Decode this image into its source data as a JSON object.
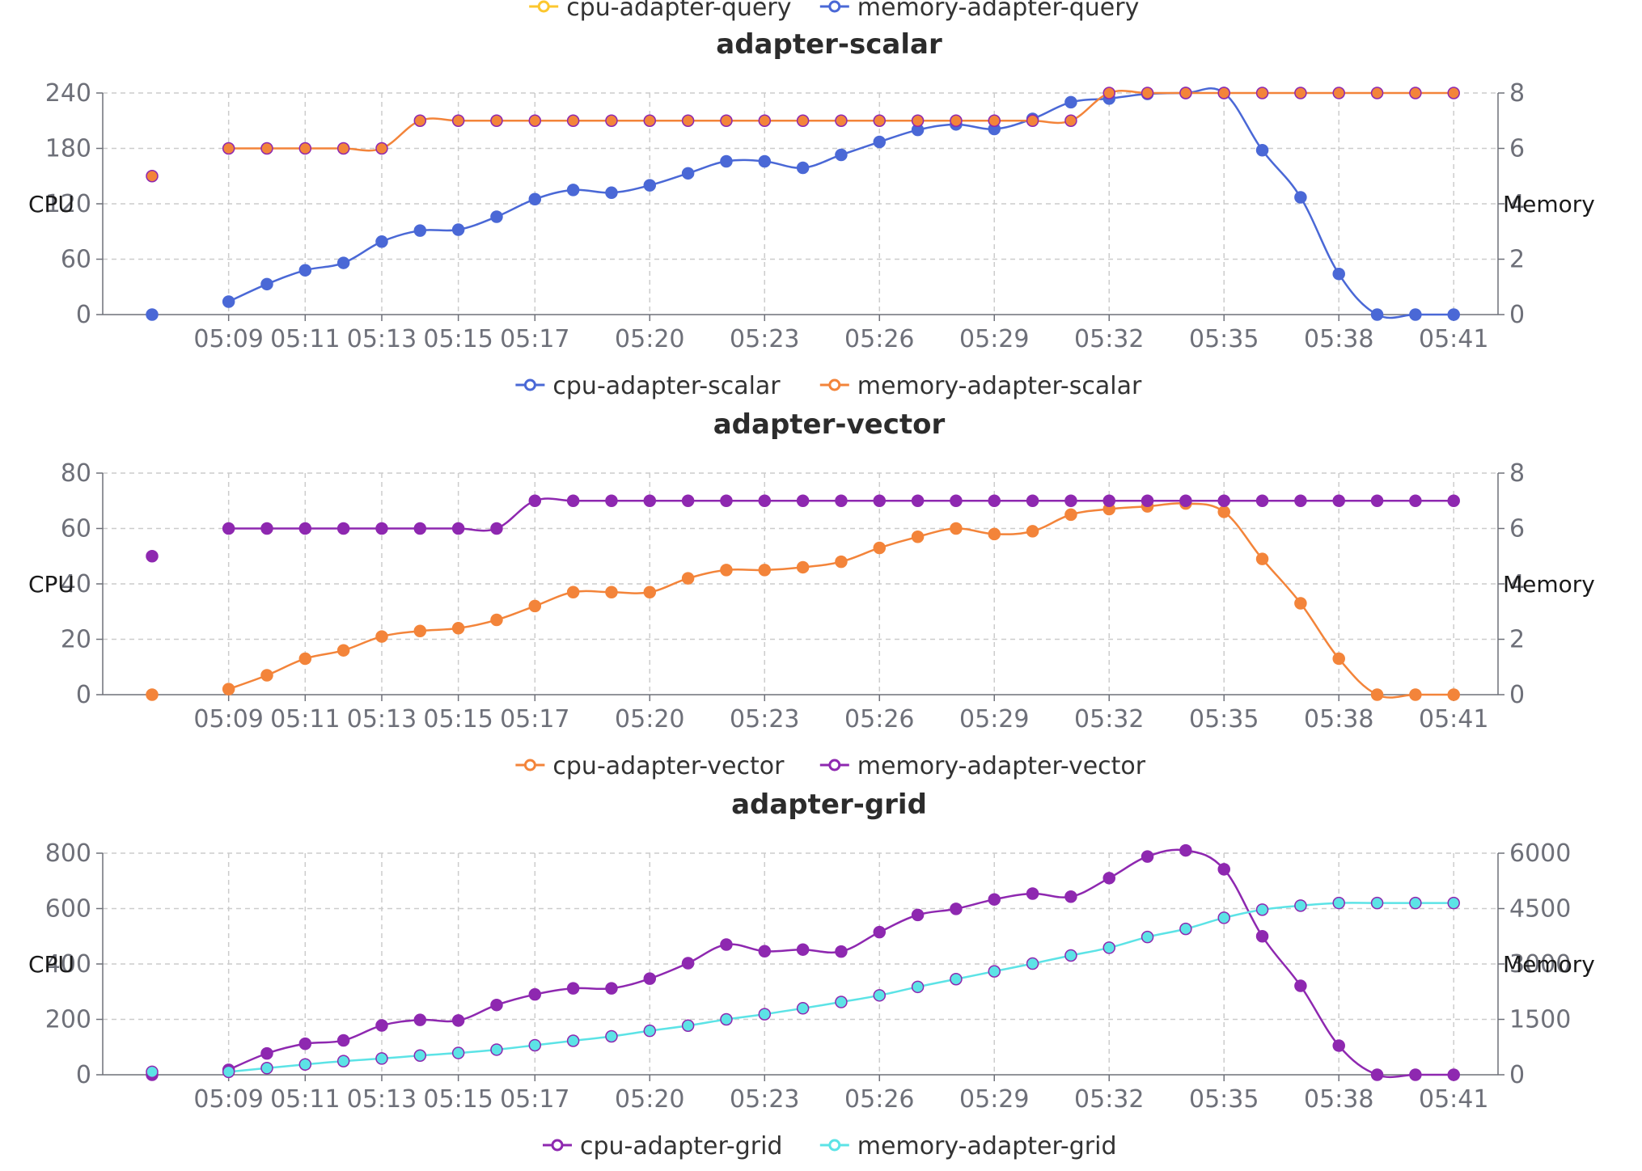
{
  "chart_data": [
    {
      "type": "line",
      "title": "",
      "ylabel": "",
      "y2label": "",
      "legend": [
        {
          "name": "cpu-adapter-query",
          "color": "#fcc72e"
        },
        {
          "name": "memory-adapter-query",
          "color": "#4a68d6"
        }
      ],
      "legend_only": true
    },
    {
      "type": "line",
      "title": "adapter-scalar",
      "ylabel": "CPU",
      "y2label": "Memory",
      "ylim": [
        0,
        240
      ],
      "yticks": [
        0,
        60,
        120,
        180,
        240
      ],
      "y2lim": [
        0,
        8
      ],
      "y2ticks": [
        0,
        2,
        4,
        6,
        8
      ],
      "xticks": [
        "05:09",
        "05:11",
        "05:13",
        "05:15",
        "05:17",
        "05:20",
        "05:23",
        "05:26",
        "05:29",
        "05:32",
        "05:35",
        "05:38",
        "05:41"
      ],
      "grid": true,
      "legend_position": "bottom",
      "series": [
        {
          "name": "cpu-adapter-scalar",
          "axis": "left",
          "color": "#4a68d6",
          "values": [
            0,
            null,
            14,
            33,
            48,
            56,
            79,
            91,
            92,
            106,
            125,
            135,
            132,
            140,
            153,
            166,
            166,
            159,
            173,
            187,
            200,
            206,
            201,
            212,
            230,
            234,
            239,
            240,
            240,
            178,
            127,
            44,
            0,
            0,
            0
          ]
        },
        {
          "name": "memory-adapter-scalar",
          "axis": "right",
          "color": "#f3843a",
          "values": [
            5,
            null,
            6,
            6,
            6,
            6,
            6,
            7,
            7,
            7,
            7,
            7,
            7,
            7,
            7,
            7,
            7,
            7,
            7,
            7,
            7,
            7,
            7,
            7,
            7,
            8,
            8,
            8,
            8,
            8,
            8,
            8,
            8,
            8,
            8
          ]
        }
      ]
    },
    {
      "type": "line",
      "title": "adapter-vector",
      "ylabel": "CPU",
      "y2label": "Memory",
      "ylim": [
        0,
        80
      ],
      "yticks": [
        0,
        20,
        40,
        60,
        80
      ],
      "y2lim": [
        0,
        8
      ],
      "y2ticks": [
        0,
        2,
        4,
        6,
        8
      ],
      "xticks": [
        "05:09",
        "05:11",
        "05:13",
        "05:15",
        "05:17",
        "05:20",
        "05:23",
        "05:26",
        "05:29",
        "05:32",
        "05:35",
        "05:38",
        "05:41"
      ],
      "grid": true,
      "legend_position": "bottom",
      "series": [
        {
          "name": "cpu-adapter-vector",
          "axis": "left",
          "color": "#f3843a",
          "values": [
            0,
            null,
            2,
            7,
            13,
            16,
            21,
            23,
            24,
            27,
            32,
            37,
            37,
            37,
            42,
            45,
            45,
            46,
            48,
            53,
            57,
            60,
            58,
            59,
            65,
            67,
            68,
            69,
            66,
            49,
            33,
            13,
            0,
            0,
            0
          ]
        },
        {
          "name": "memory-adapter-vector",
          "axis": "right",
          "color": "#8e28b0",
          "values": [
            5,
            null,
            6,
            6,
            6,
            6,
            6,
            6,
            6,
            6,
            7,
            7,
            7,
            7,
            7,
            7,
            7,
            7,
            7,
            7,
            7,
            7,
            7,
            7,
            7,
            7,
            7,
            7,
            7,
            7,
            7,
            7,
            7,
            7,
            7
          ]
        }
      ]
    },
    {
      "type": "line",
      "title": "adapter-grid",
      "ylabel": "CPU",
      "y2label": "Memory",
      "ylim": [
        0,
        800
      ],
      "yticks": [
        0,
        200,
        400,
        600,
        800
      ],
      "y2lim": [
        0,
        6000
      ],
      "y2ticks": [
        0,
        1500,
        3000,
        4500,
        6000
      ],
      "xticks": [
        "05:09",
        "05:11",
        "05:13",
        "05:15",
        "05:17",
        "05:20",
        "05:23",
        "05:26",
        "05:29",
        "05:32",
        "05:35",
        "05:38",
        "05:41"
      ],
      "grid": true,
      "legend_position": "bottom",
      "series": [
        {
          "name": "cpu-adapter-grid",
          "axis": "left",
          "color": "#8e28b0",
          "values": [
            0,
            null,
            18,
            77,
            112,
            124,
            178,
            198,
            196,
            252,
            290,
            312,
            312,
            347,
            403,
            470,
            446,
            452,
            445,
            515,
            577,
            599,
            633,
            654,
            643,
            710,
            788,
            810,
            742,
            500,
            321,
            105,
            0,
            0,
            0
          ]
        },
        {
          "name": "memory-adapter-grid",
          "axis": "right",
          "color": "#5ce3e6",
          "values": [
            80,
            null,
            80,
            180,
            280,
            370,
            440,
            520,
            590,
            680,
            800,
            920,
            1040,
            1190,
            1330,
            1500,
            1640,
            1800,
            1970,
            2150,
            2380,
            2590,
            2800,
            3010,
            3230,
            3440,
            3730,
            3950,
            4250,
            4470,
            4580,
            4650,
            4650,
            4650,
            4650
          ]
        }
      ]
    }
  ]
}
